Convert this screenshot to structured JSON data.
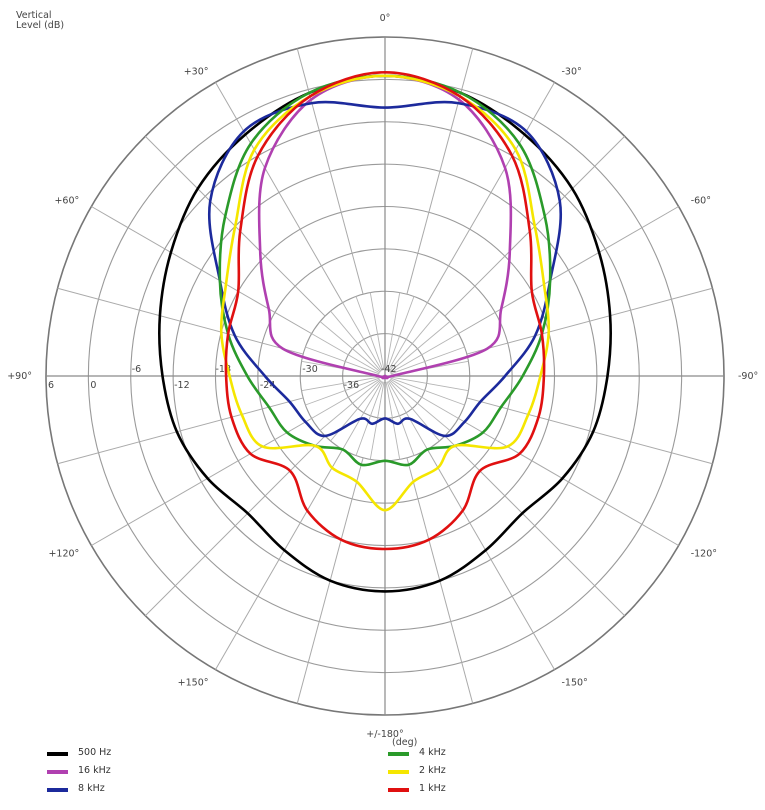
{
  "chart_data": {
    "type": "polar-line",
    "title": "",
    "radial_axis_label": "Vertical Level (dB)",
    "angular_axis_label": "(deg)",
    "radial_range": [
      -42,
      6
    ],
    "radial_ticks": [
      6,
      0,
      -6,
      -12,
      -18,
      -24,
      -30,
      -36,
      -42
    ],
    "angular_tick_labels": [
      {
        "angle": 0,
        "label": "0°"
      },
      {
        "angle": 30,
        "label": "+30°"
      },
      {
        "angle": 60,
        "label": "+60°"
      },
      {
        "angle": 90,
        "label": "+90°"
      },
      {
        "angle": 120,
        "label": "+120°"
      },
      {
        "angle": 150,
        "label": "+150°"
      },
      {
        "angle": 180,
        "label": "+/-180°"
      },
      {
        "angle": -30,
        "label": "-30°"
      },
      {
        "angle": -60,
        "label": "-60°"
      },
      {
        "angle": -90,
        "label": "-90°"
      },
      {
        "angle": -120,
        "label": "-120°"
      },
      {
        "angle": -150,
        "label": "-150°"
      }
    ],
    "angle_convention": "0° at top, positive angles counter-clockwise (left side)",
    "grid": true,
    "legend_position": "bottom",
    "angles": [
      0,
      15,
      30,
      45,
      60,
      75,
      90,
      105,
      120,
      135,
      150,
      165,
      180,
      -165,
      -150,
      -135,
      -120,
      -105,
      -90,
      -75,
      -60,
      -45,
      -30,
      -15
    ],
    "series": [
      {
        "name": "500 Hz",
        "color": "#000000",
        "values": [
          0.5,
          -0.5,
          -2.5,
          -4.5,
          -7,
          -9,
          -10.5,
          -11.5,
          -13,
          -14.5,
          -13.5,
          -12,
          -11.5,
          -12,
          -13.5,
          -14.5,
          -13,
          -11.5,
          -10.5,
          -9,
          -7,
          -4.5,
          -2.5,
          -0.5
        ]
      },
      {
        "name": "16 kHz",
        "color": "#b040b0",
        "values": [
          0.5,
          -1.5,
          -8,
          -17,
          -23,
          -27,
          -41,
          -42,
          -42,
          -42,
          -42,
          -42,
          -42,
          -42,
          -42,
          -42,
          -42,
          -42,
          -41,
          -27,
          -23,
          -17,
          -8,
          -1.5
        ]
      },
      {
        "name": "8 kHz",
        "color": "#1c2a9c",
        "values": [
          -4,
          -2,
          -2,
          -7,
          -15,
          -20,
          -25,
          -28,
          -29,
          -30,
          -35,
          -35,
          -36,
          -35,
          -35,
          -30,
          -29,
          -28,
          -25,
          -20,
          -15,
          -7,
          -2,
          -2
        ]
      },
      {
        "name": "4 kHz",
        "color": "#2a9a2a",
        "values": [
          0.5,
          -0.5,
          -4,
          -10,
          -15,
          -19,
          -22.5,
          -25,
          -26,
          -28,
          -30,
          -29,
          -30,
          -29,
          -30,
          -28,
          -26,
          -25,
          -22.5,
          -19,
          -15,
          -10,
          -4,
          -0.5
        ]
      },
      {
        "name": "2 kHz",
        "color": "#f5e600",
        "values": [
          0.5,
          -1,
          -5,
          -12,
          -16,
          -18,
          -20,
          -21,
          -22,
          -28,
          -27,
          -26.5,
          -23,
          -26.5,
          -27,
          -28,
          -22,
          -21,
          -20,
          -18,
          -16,
          -12,
          -5,
          -1
        ]
      },
      {
        "name": "1 kHz",
        "color": "#e01010",
        "values": [
          1,
          -1,
          -6,
          -13,
          -18,
          -19,
          -19.5,
          -19.5,
          -20,
          -23,
          -20,
          -18,
          -17.5,
          -18,
          -20,
          -23,
          -20,
          -19.5,
          -19.5,
          -19,
          -18,
          -13,
          -6,
          -1
        ]
      }
    ]
  },
  "labels": {
    "ylabel_line1": "Vertical",
    "ylabel_line2": "Level  (dB)",
    "deg_unit": "(deg)"
  },
  "legend": [
    {
      "label": "500 Hz",
      "color": "#000000"
    },
    {
      "label": "16 kHz",
      "color": "#b040b0"
    },
    {
      "label": "8 kHz",
      "color": "#1c2a9c"
    },
    {
      "label": "4 kHz",
      "color": "#2a9a2a"
    },
    {
      "label": "2 kHz",
      "color": "#f5e600"
    },
    {
      "label": "1 kHz",
      "color": "#e01010"
    }
  ]
}
